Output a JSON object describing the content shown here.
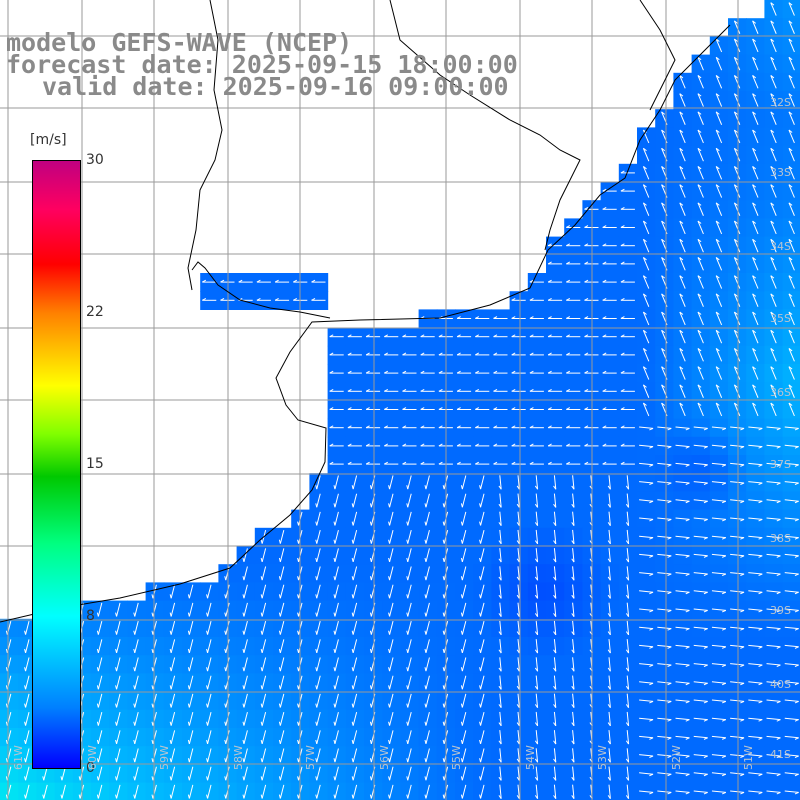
{
  "title": {
    "line1": "modelo GEFS-WAVE (NCEP)",
    "line2": "forecast date: 2025-09-15 18:00:00",
    "line3": "valid date: 2025-09-16 09:00:00"
  },
  "colorbar": {
    "units": "[m/s]",
    "ticks": [
      "30",
      "22",
      "15",
      "8",
      "0"
    ],
    "ramp_colors": [
      "#0000ff",
      "#0080ff",
      "#00ffff",
      "#00ff80",
      "#00c800",
      "#80ff00",
      "#ffff00",
      "#ff8000",
      "#ff0000",
      "#c00080"
    ]
  },
  "lat_labels": [
    "32S",
    "33S",
    "34S",
    "35S",
    "36S",
    "37S",
    "38S",
    "39S",
    "40S",
    "41S"
  ],
  "lon_labels": [
    "61W",
    "60W",
    "59W",
    "58W",
    "57W",
    "56W",
    "55W",
    "54W",
    "53W",
    "52W",
    "51W"
  ],
  "colors": {
    "land": "#ffffff",
    "coast": "#000000",
    "grid": "#9a9a9a",
    "arrow": "#ffffff"
  }
}
